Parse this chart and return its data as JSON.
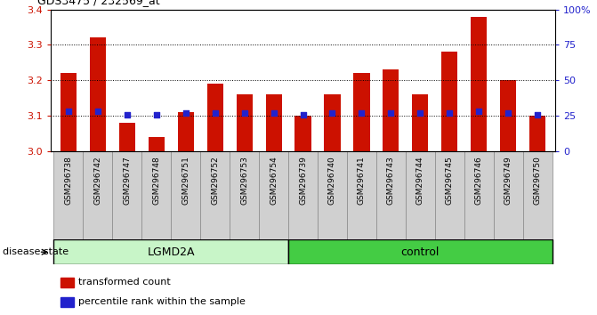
{
  "title": "GDS3475 / 232569_at",
  "samples": [
    "GSM296738",
    "GSM296742",
    "GSM296747",
    "GSM296748",
    "GSM296751",
    "GSM296752",
    "GSM296753",
    "GSM296754",
    "GSM296739",
    "GSM296740",
    "GSM296741",
    "GSM296743",
    "GSM296744",
    "GSM296745",
    "GSM296746",
    "GSM296749",
    "GSM296750"
  ],
  "transformed_count": [
    3.22,
    3.32,
    3.08,
    3.04,
    3.11,
    3.19,
    3.16,
    3.16,
    3.1,
    3.16,
    3.22,
    3.23,
    3.16,
    3.28,
    3.38,
    3.2,
    3.1
  ],
  "percentile_values": [
    3.113,
    3.113,
    3.103,
    3.103,
    3.107,
    3.109,
    3.107,
    3.107,
    3.103,
    3.107,
    3.109,
    3.109,
    3.107,
    3.109,
    3.113,
    3.109,
    3.103
  ],
  "groups": [
    {
      "label": "LGMD2A",
      "start": 0,
      "end": 7,
      "color": "#c8f5c8"
    },
    {
      "label": "control",
      "start": 8,
      "end": 16,
      "color": "#44cc44"
    }
  ],
  "ylim": [
    3.0,
    3.4
  ],
  "y_ticks": [
    3.0,
    3.1,
    3.2,
    3.3,
    3.4
  ],
  "right_yticks": [
    0,
    25,
    50,
    75,
    100
  ],
  "bar_color": "#cc1100",
  "dot_color": "#2222cc",
  "bar_width": 0.55,
  "tick_label_color_left": "#cc1100",
  "tick_label_color_right": "#2222cc",
  "legend_items": [
    {
      "label": "transformed count",
      "color": "#cc1100"
    },
    {
      "label": "percentile rank within the sample",
      "color": "#2222cc"
    }
  ],
  "disease_state_label": "disease state",
  "sample_box_color": "#d0d0d0",
  "sample_box_edge": "#888888"
}
